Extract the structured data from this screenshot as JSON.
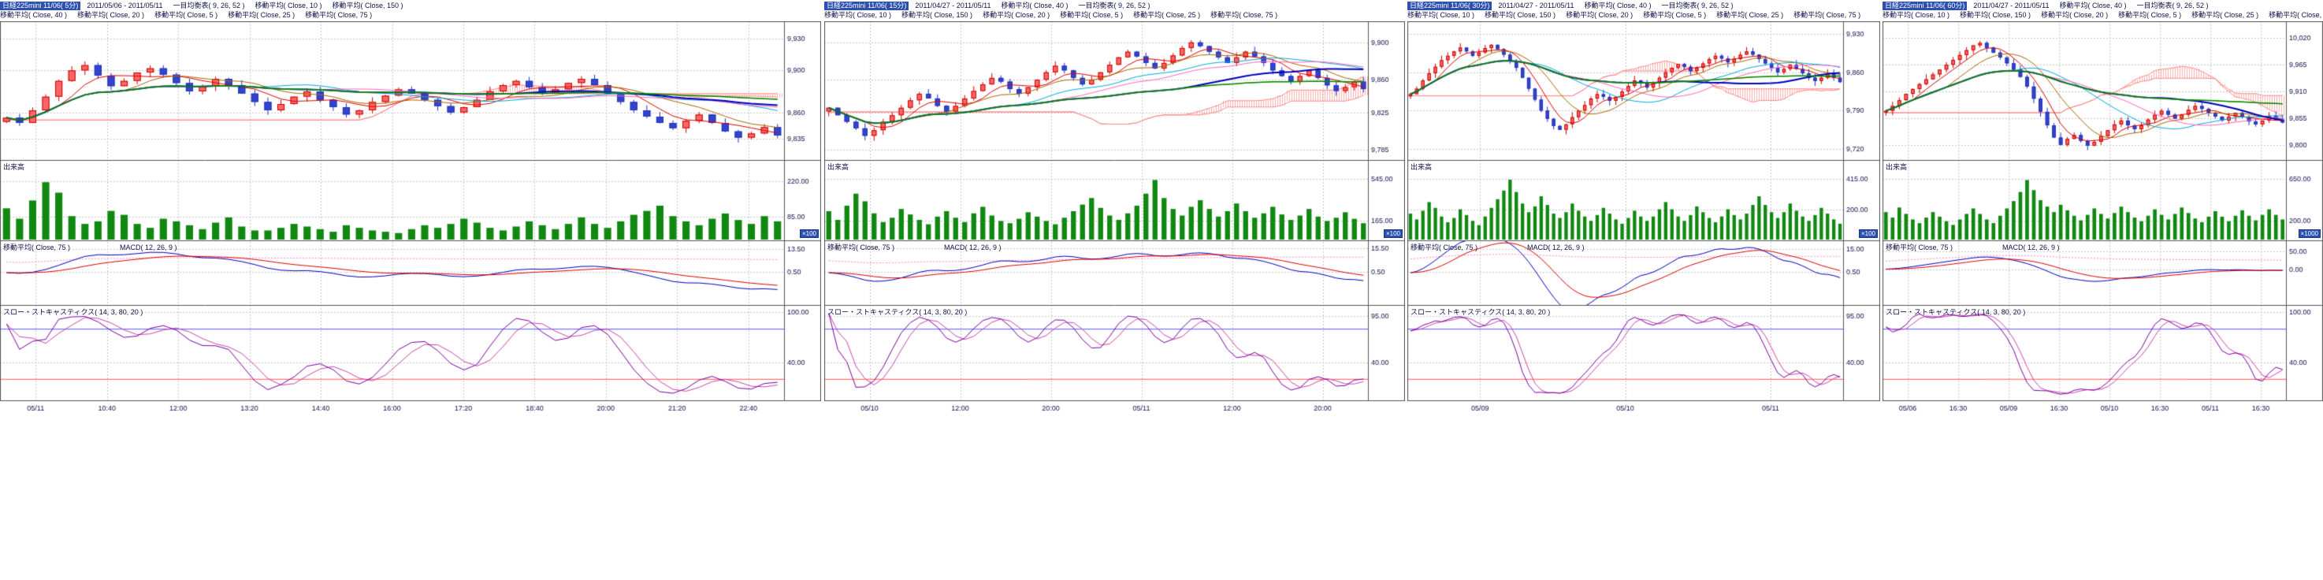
{
  "colors": {
    "background": "#ffffff",
    "candle_up": "#cc0000",
    "candle_up_fill": "#ff6666",
    "candle_down": "#2233bb",
    "candle_down_fill": "#3344cc",
    "cloud_hatch": "#ffb0b0",
    "cloud_edge": "#ff8888",
    "volume_bar": "#118811",
    "grid": "#c8c8c8",
    "axis_text": "#10104a",
    "border": "#555555",
    "title_chip_bg": "#2b50b0",
    "title_chip_text": "#ffffff",
    "macd_line": "#0000bb",
    "macd_signal": "#dd0000",
    "macd_ma": "#ff88bb",
    "stoch_k": "#7a00a0",
    "stoch_d": "#cc44aa",
    "stoch_upper_line": "#5555ff",
    "stoch_lower_line": "#ff5555",
    "ma_colors": {
      "5": "#dd0000",
      "10": "#aa6600",
      "20": "#00aadd",
      "25": "#ff66bb",
      "40": "#0000bb",
      "75": "#cccc00",
      "150": "#008800"
    }
  },
  "chart_data": [
    {
      "type": "candlestick",
      "title": "日経225mini 11/06( 5分)",
      "interval": "5分",
      "header_line1": [
        "2011/05/06 - 2011/05/11",
        "一目均衡表( 9, 26, 52 )",
        "移動平均( Close, 10 )",
        "移動平均( Close, 150 )"
      ],
      "header_line2": [
        "移動平均( Close, 40 )",
        "移動平均( Close, 20 )",
        "移動平均( Close, 5 )",
        "移動平均( Close, 25 )",
        "移動平均( Close, 75 )"
      ],
      "labels": {
        "volume": "出来高",
        "macd_ma": "移動平均( Close, 75 )",
        "macd": "MACD( 12, 26, 9 )",
        "stochastics": "スロー・ストキャスティクス( 14, 3, 80, 20 )",
        "multiplier": "×100"
      },
      "price_axis": {
        "min": 9820,
        "max": 9940,
        "ticks": [
          9930,
          9900,
          9860,
          9835
        ]
      },
      "volume_axis": {
        "max": 260,
        "ticks": [
          220,
          85
        ]
      },
      "macd_axis": {
        "min": -16,
        "max": 16,
        "ticks": [
          13.5,
          0.5
        ]
      },
      "stoch_axis": {
        "ticks": [
          100,
          40
        ],
        "upper": 80,
        "lower": 20
      },
      "time_labels": [
        "05/11",
        "10:40",
        "12:00",
        "13:20",
        "14:40",
        "16:00",
        "17:20",
        "18:40",
        "20:00",
        "21:20",
        "22:40"
      ],
      "closes": [
        9855,
        9850,
        9862,
        9875,
        9890,
        9900,
        9905,
        9895,
        9885,
        9890,
        9898,
        9902,
        9896,
        9888,
        9880,
        9885,
        9892,
        9886,
        9878,
        9870,
        9862,
        9868,
        9875,
        9880,
        9872,
        9865,
        9858,
        9862,
        9870,
        9876,
        9882,
        9878,
        9872,
        9866,
        9860,
        9865,
        9872,
        9880,
        9886,
        9890,
        9884,
        9878,
        9882,
        9888,
        9892,
        9886,
        9878,
        9870,
        9862,
        9856,
        9850,
        9845,
        9852,
        9858,
        9850,
        9842,
        9836,
        9840,
        9846,
        9838
      ],
      "volumes": [
        120,
        80,
        150,
        220,
        180,
        90,
        60,
        70,
        110,
        95,
        60,
        45,
        80,
        70,
        55,
        40,
        65,
        85,
        50,
        35,
        35,
        45,
        60,
        50,
        40,
        30,
        55,
        45,
        35,
        30,
        25,
        40,
        55,
        45,
        60,
        80,
        65,
        45,
        35,
        50,
        70,
        55,
        40,
        60,
        85,
        60,
        45,
        70,
        95,
        110,
        130,
        90,
        70,
        55,
        80,
        100,
        75,
        60,
        90,
        70
      ]
    },
    {
      "type": "candlestick",
      "title": "日経225mini 11/06( 15分)",
      "interval": "15分",
      "header_line1": [
        "2011/04/27 - 2011/05/11",
        "移動平均( Close, 40 )",
        "一目均衡表( 9, 26, 52 )"
      ],
      "header_line2": [
        "移動平均( Close, 10 )",
        "移動平均( Close, 150 )",
        "移動平均( Close, 20 )",
        "移動平均( Close, 5 )",
        "移動平均( Close, 25 )",
        "移動平均( Close, 75 )"
      ],
      "labels": {
        "volume": "出来高",
        "macd_ma": "移動平均( Close, 75 )",
        "macd": "MACD( 12, 26, 9 )",
        "stochastics": "スロー・ストキャスティクス( 14, 3, 80, 20 )",
        "multiplier": "×100"
      },
      "price_axis": {
        "min": 9780,
        "max": 9915,
        "ticks": [
          9900,
          9860,
          9825,
          9785
        ]
      },
      "volume_axis": {
        "max": 620,
        "ticks": [
          545,
          165
        ]
      },
      "macd_axis": {
        "min": -18,
        "max": 18,
        "ticks": [
          15.5,
          0.5
        ]
      },
      "stoch_axis": {
        "ticks": [
          95,
          40
        ],
        "upper": 80,
        "lower": 20
      },
      "time_labels": [
        "05/10",
        "12:00",
        "20:00",
        "05/11",
        "12:00",
        "20:00"
      ],
      "closes": [
        9830,
        9822,
        9815,
        9808,
        9800,
        9806,
        9815,
        9822,
        9830,
        9838,
        9845,
        9840,
        9832,
        9826,
        9832,
        9840,
        9848,
        9855,
        9862,
        9858,
        9850,
        9845,
        9852,
        9860,
        9868,
        9875,
        9870,
        9862,
        9855,
        9860,
        9868,
        9876,
        9884,
        9890,
        9885,
        9878,
        9872,
        9878,
        9886,
        9894,
        9900,
        9896,
        9890,
        9884,
        9878,
        9884,
        9890,
        9885,
        9878,
        9870,
        9864,
        9858,
        9864,
        9870,
        9862,
        9854,
        9848,
        9852,
        9858,
        9850
      ],
      "volumes": [
        260,
        180,
        310,
        420,
        350,
        240,
        160,
        200,
        280,
        230,
        180,
        140,
        210,
        260,
        200,
        160,
        240,
        300,
        220,
        170,
        150,
        190,
        250,
        210,
        170,
        140,
        200,
        260,
        320,
        380,
        290,
        220,
        180,
        240,
        310,
        420,
        545,
        380,
        280,
        220,
        300,
        360,
        280,
        210,
        260,
        330,
        260,
        200,
        240,
        300,
        230,
        180,
        220,
        280,
        210,
        170,
        200,
        250,
        190,
        150
      ]
    },
    {
      "type": "candlestick",
      "title": "日経225mini 11/06( 30分)",
      "interval": "30分",
      "header_line1": [
        "2011/04/27 - 2011/05/11",
        "移動平均( Close, 40 )",
        "一目均衡表( 9, 26, 52 )"
      ],
      "header_line2": [
        "移動平均( Close, 10 )",
        "移動平均( Close, 150 )",
        "移動平均( Close, 20 )",
        "移動平均( Close, 5 )",
        "移動平均( Close, 25 )",
        "移動平均( Close, 75 )"
      ],
      "labels": {
        "volume": "出来高",
        "macd_ma": "移動平均( Close, 75 )",
        "macd": "MACD( 12, 26, 9 )",
        "stochastics": "スロー・ストキャスティクス( 14, 3, 80, 20 )",
        "multiplier": "×100"
      },
      "price_axis": {
        "min": 9710,
        "max": 9940,
        "ticks": [
          9930,
          9860,
          9790,
          9720
        ]
      },
      "volume_axis": {
        "max": 470,
        "ticks": [
          415,
          200
        ]
      },
      "macd_axis": {
        "min": -18,
        "max": 18,
        "ticks": [
          15,
          0.5
        ]
      },
      "stoch_axis": {
        "ticks": [
          95,
          40
        ],
        "upper": 80,
        "lower": 20
      },
      "time_labels": [
        "05/09",
        "05/10",
        "05/11"
      ],
      "closes": [
        9820,
        9830,
        9845,
        9858,
        9870,
        9882,
        9890,
        9898,
        9905,
        9898,
        9890,
        9896,
        9904,
        9910,
        9902,
        9892,
        9880,
        9868,
        9850,
        9830,
        9810,
        9790,
        9775,
        9762,
        9755,
        9765,
        9778,
        9790,
        9800,
        9812,
        9820,
        9815,
        9808,
        9815,
        9825,
        9835,
        9845,
        9840,
        9832,
        9840,
        9850,
        9860,
        9868,
        9875,
        9870,
        9862,
        9868,
        9876,
        9884,
        9890,
        9885,
        9878,
        9884,
        9892,
        9898,
        9892,
        9884,
        9876,
        9868,
        9860,
        9866,
        9874,
        9866,
        9858,
        9850,
        9844,
        9850,
        9858,
        9850,
        9842
      ],
      "volumes": [
        180,
        140,
        200,
        260,
        220,
        160,
        120,
        150,
        210,
        170,
        130,
        100,
        160,
        220,
        280,
        340,
        415,
        330,
        250,
        190,
        230,
        300,
        240,
        180,
        150,
        190,
        250,
        200,
        160,
        130,
        170,
        220,
        180,
        140,
        110,
        150,
        200,
        160,
        130,
        160,
        210,
        260,
        210,
        160,
        130,
        170,
        230,
        190,
        150,
        120,
        160,
        210,
        170,
        140,
        180,
        240,
        300,
        240,
        190,
        150,
        190,
        250,
        200,
        160,
        130,
        170,
        220,
        180,
        140,
        110
      ]
    },
    {
      "type": "candlestick",
      "title": "日経225mini 11/06( 60分)",
      "interval": "60分",
      "header_line1": [
        "2011/04/27 - 2011/05/11",
        "移動平均( Close, 40 )",
        "一目均衡表( 9, 26, 52 )"
      ],
      "header_line2": [
        "移動平均( Close, 10 )",
        "移動平均( Close, 150 )",
        "移動平均( Close, 20 )",
        "移動平均( Close, 5 )",
        "移動平均( Close, 25 )",
        "移動平均( Close, 75 )"
      ],
      "labels": {
        "volume": "出来高",
        "macd_ma": "移動平均( Close, 75 )",
        "macd": "MACD( 12, 26, 9 )",
        "stochastics": "スロー・ストキャスティクス( 14, 3, 80, 20 )",
        "multiplier": "×1000"
      },
      "price_axis": {
        "min": 9780,
        "max": 10040,
        "ticks": [
          10020,
          9965,
          9910,
          9855,
          9800
        ]
      },
      "volume_axis": {
        "max": 740,
        "ticks": [
          650,
          200
        ]
      },
      "macd_axis": {
        "min": -90,
        "max": 70,
        "ticks": [
          50,
          0
        ]
      },
      "stoch_axis": {
        "ticks": [
          100,
          40
        ],
        "upper": 80,
        "lower": 20
      },
      "time_labels": [
        "05/06",
        "16:30",
        "05/09",
        "16:30",
        "05/10",
        "16:30",
        "05/11",
        "16:30"
      ],
      "closes": [
        9870,
        9880,
        9892,
        9905,
        9915,
        9925,
        9935,
        9945,
        9955,
        9965,
        9975,
        9985,
        9995,
        10005,
        10010,
        10000,
        9990,
        9980,
        9968,
        9955,
        9940,
        9920,
        9895,
        9868,
        9840,
        9815,
        9800,
        9812,
        9820,
        9808,
        9798,
        9806,
        9818,
        9830,
        9842,
        9850,
        9840,
        9832,
        9840,
        9852,
        9862,
        9870,
        9862,
        9854,
        9862,
        9872,
        9880,
        9874,
        9866,
        9858,
        9850,
        9858,
        9866,
        9858,
        9848,
        9842,
        9850,
        9860,
        9852,
        9846
      ],
      "volumes": [
        300,
        240,
        350,
        280,
        220,
        180,
        240,
        300,
        250,
        200,
        160,
        220,
        280,
        340,
        280,
        220,
        180,
        260,
        340,
        420,
        520,
        650,
        540,
        430,
        360,
        300,
        380,
        320,
        260,
        210,
        270,
        340,
        280,
        230,
        290,
        360,
        300,
        240,
        200,
        260,
        330,
        270,
        220,
        280,
        350,
        290,
        230,
        190,
        250,
        310,
        250,
        200,
        260,
        320,
        260,
        210,
        270,
        330,
        270,
        220
      ]
    }
  ]
}
